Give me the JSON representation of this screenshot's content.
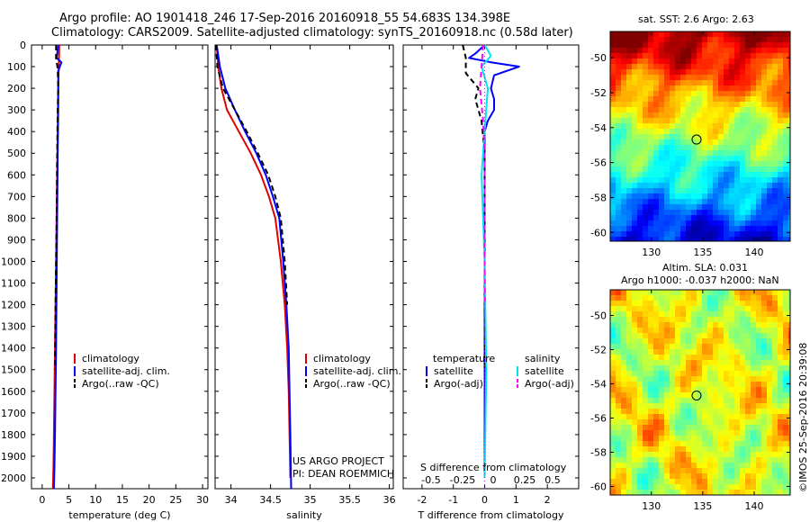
{
  "header": {
    "line1": "Argo profile: AO 1901418_246 17-Sep-2016 20160918_55 54.683S 134.398E",
    "line2": "Climatology: CARS2009. Satellite-adjusted climatology: synTS_20160918.nc (0.58d later)"
  },
  "colors": {
    "climatology": "#e00000",
    "satellite_adj": "#0000ff",
    "argo": "#000000",
    "salinity_satellite": "#00e5ee",
    "salinity_argo": "#ff00ff"
  },
  "legend_profile": {
    "climatology": "climatology",
    "satellite": "satellite-adj. clim.",
    "argo": "Argo(..raw -QC)"
  },
  "legend_diff": {
    "temperature_header": "temperature",
    "salinity_header": "salinity",
    "satellite": "satellite",
    "argo": "Argo(-adj)"
  },
  "panel3": {
    "s_diff_label": "S difference from climatology",
    "s_ticks": [
      "-0.5",
      "-0.25",
      "0",
      "0.25",
      "0.5"
    ]
  },
  "credits": {
    "project": "US ARGO PROJECT",
    "pi": "PI: DEAN ROEMMICH",
    "imos": "©IMOS 25-Sep-2016 20:39:08"
  },
  "maps": {
    "sst_title": "sat. SST: 2.6 Argo: 2.63",
    "sla_title1": "Altim. SLA: 0.031",
    "sla_title2": "Argo h1000: -0.037 h2000: NaN",
    "y_ticks": [
      "-50",
      "-52",
      "-54",
      "-56",
      "-58",
      "-60"
    ],
    "x_ticks": [
      "130",
      "135",
      "140"
    ],
    "lat_range": [
      -60.5,
      -48.5
    ],
    "lon_range": [
      126,
      143.5
    ],
    "float_position": {
      "lon": 134.398,
      "lat": -54.683
    }
  },
  "chart_data": [
    {
      "type": "line",
      "xlabel": "temperature (deg C)",
      "ylabel": "",
      "xlim": [
        -2,
        31
      ],
      "ylim": [
        2050,
        0
      ],
      "xticks": [
        0,
        5,
        10,
        15,
        20,
        25,
        30
      ],
      "yticks": [
        0,
        100,
        200,
        300,
        400,
        500,
        600,
        700,
        800,
        900,
        1000,
        1100,
        1200,
        1300,
        1400,
        1500,
        1600,
        1700,
        1800,
        1900,
        2000
      ],
      "series": [
        {
          "name": "climatology",
          "x": [
            3.2,
            3.1,
            3.0,
            2.9,
            2.8,
            2.7,
            2.6,
            2.5,
            2.4,
            2.3,
            2.2,
            2.1,
            2.0
          ],
          "y": [
            0,
            100,
            200,
            400,
            600,
            800,
            1000,
            1200,
            1400,
            1600,
            1800,
            1950,
            2050
          ]
        },
        {
          "name": "satellite-adj. clim.",
          "x": [
            3.0,
            2.7,
            3.6,
            3.0,
            3.0,
            2.9,
            2.8,
            2.7,
            2.6,
            2.5,
            2.4,
            2.3,
            2.2
          ],
          "y": [
            0,
            60,
            80,
            120,
            300,
            500,
            800,
            1100,
            1400,
            1600,
            1800,
            1950,
            2050
          ]
        },
        {
          "name": "Argo(..raw -QC)",
          "x": [
            2.6,
            2.6,
            2.9,
            3.0,
            2.9,
            2.8,
            2.7,
            2.5,
            2.4
          ],
          "y": [
            0,
            60,
            110,
            200,
            300,
            500,
            800,
            1200,
            1500
          ]
        }
      ]
    },
    {
      "type": "line",
      "xlabel": "salinity",
      "ylabel": "",
      "xlim": [
        33.8,
        36.05
      ],
      "ylim": [
        2050,
        0
      ],
      "xticks": [
        34,
        34.5,
        35,
        35.5,
        36
      ],
      "series": [
        {
          "name": "climatology",
          "x": [
            33.82,
            33.84,
            33.88,
            33.95,
            34.1,
            34.25,
            34.38,
            34.48,
            34.56,
            34.63,
            34.68,
            34.71,
            34.73,
            34.74,
            34.75
          ],
          "y": [
            0,
            100,
            200,
            300,
            400,
            500,
            600,
            700,
            800,
            1000,
            1200,
            1400,
            1600,
            1800,
            2000
          ]
        },
        {
          "name": "satellite-adj. clim.",
          "x": [
            33.82,
            33.86,
            33.93,
            34.05,
            34.18,
            34.32,
            34.44,
            34.53,
            34.61,
            34.66,
            34.7,
            34.73,
            34.74,
            34.75,
            34.76
          ],
          "y": [
            0,
            100,
            200,
            300,
            400,
            500,
            600,
            700,
            800,
            1000,
            1200,
            1400,
            1600,
            1800,
            2050
          ]
        },
        {
          "name": "Argo(..raw -QC)",
          "x": [
            33.81,
            33.83,
            33.9,
            34.05,
            34.2,
            34.34,
            34.47,
            34.56,
            34.63,
            34.68,
            34.71
          ],
          "y": [
            0,
            100,
            200,
            300,
            400,
            500,
            600,
            700,
            800,
            1000,
            1200
          ]
        }
      ]
    },
    {
      "type": "line",
      "xlabel": "T difference from climatology",
      "ylabel": "",
      "xlim": [
        -2.6,
        3.0
      ],
      "ylim": [
        2050,
        0
      ],
      "xticks": [
        -2,
        -1,
        0,
        1,
        2
      ],
      "series": [
        {
          "name": "temperature satellite",
          "x": [
            0.0,
            -0.3,
            -0.5,
            0.2,
            1.1,
            0.3,
            0.2,
            0.3,
            0.3,
            0.1,
            0.0,
            0.0,
            0.0,
            0.0,
            0.0
          ],
          "y": [
            0,
            40,
            60,
            80,
            100,
            140,
            200,
            250,
            300,
            350,
            400,
            600,
            1000,
            1500,
            2000
          ]
        },
        {
          "name": "temperature Argo(-adj)",
          "x": [
            -0.7,
            -0.6,
            -0.6,
            -0.2,
            -0.3,
            -0.1,
            0.0,
            0.0,
            0.0
          ],
          "y": [
            0,
            60,
            130,
            200,
            250,
            350,
            500,
            800,
            1500
          ]
        },
        {
          "name": "salinity satellite",
          "x": [
            0.0,
            0.2,
            -0.1,
            0.1,
            0.0,
            -0.1,
            0.0,
            0.05,
            0.0
          ],
          "y": [
            0,
            50,
            100,
            200,
            400,
            600,
            1000,
            1500,
            2000
          ]
        },
        {
          "name": "salinity Argo(-adj)",
          "x": [
            -0.05,
            -0.1,
            -0.15,
            -0.05,
            0.0,
            0.0
          ],
          "y": [
            0,
            100,
            200,
            350,
            500,
            1200
          ]
        }
      ]
    }
  ]
}
